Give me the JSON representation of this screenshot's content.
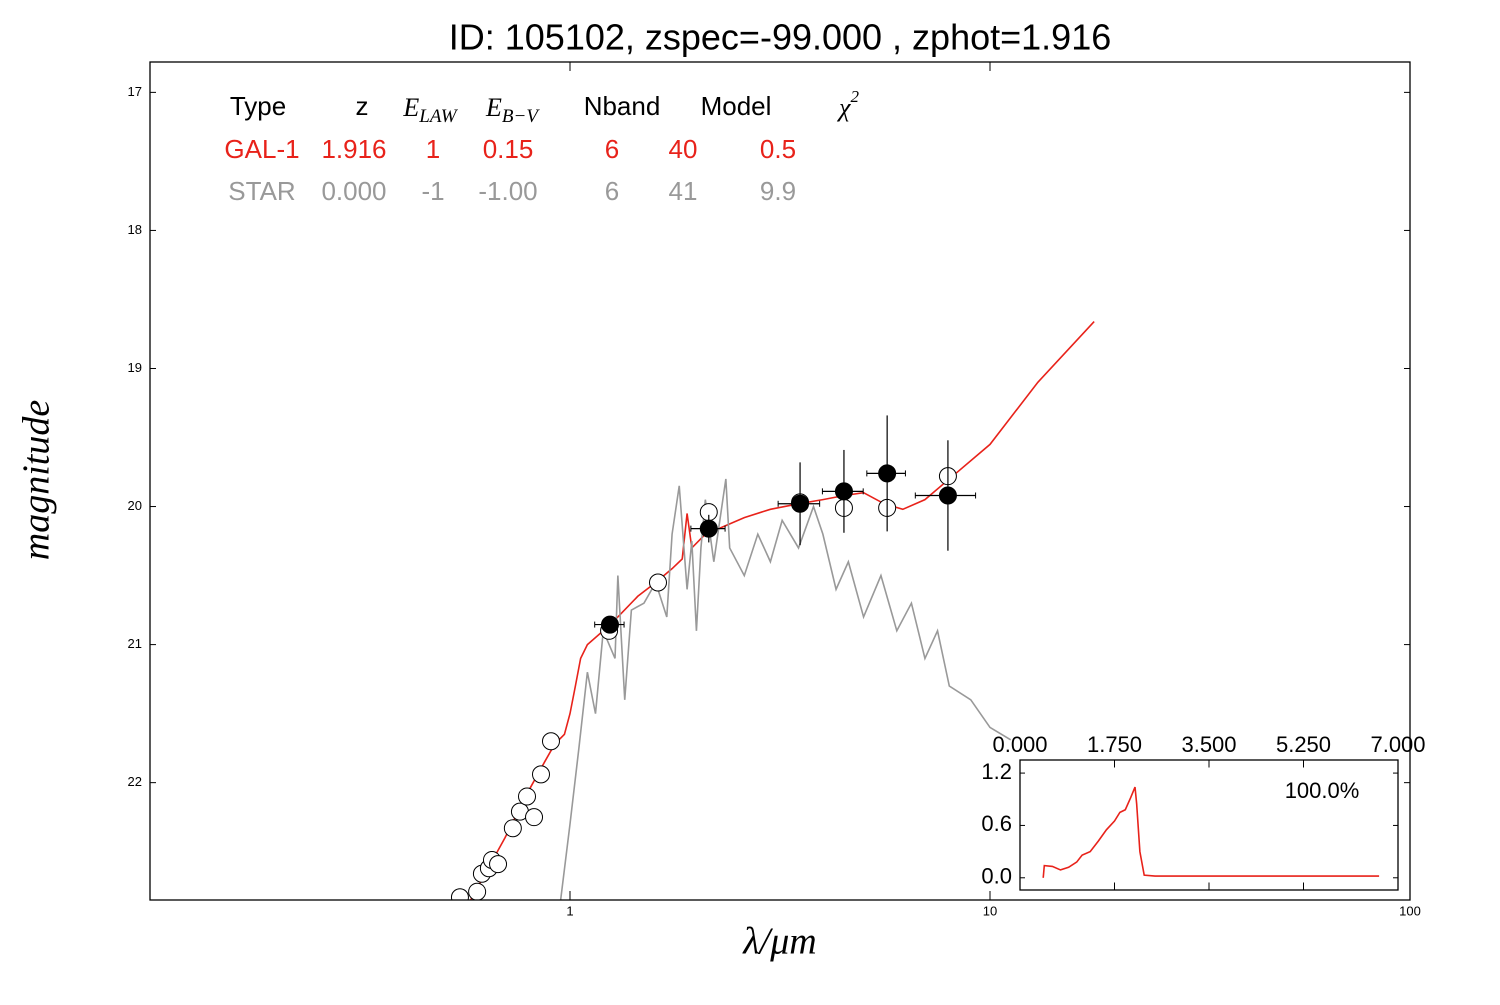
{
  "chart_data": [
    {
      "type": "line",
      "title": "ID:  105102, zspec=-99.000 , zphot=1.916",
      "xlabel": "λ/μm",
      "ylabel": "magnitude",
      "xlog": true,
      "xlim": [
        0.1,
        100
      ],
      "xticks": [
        1,
        10,
        100
      ],
      "ylim": [
        16.78,
        22.85
      ],
      "yinvert": true,
      "yticks": [
        17,
        18,
        19,
        20,
        21,
        22
      ],
      "series": [
        {
          "style": "line",
          "color": "#e8221a",
          "x": [
            0.58,
            0.7,
            0.8,
            0.87,
            0.92,
            0.97,
            1.0,
            1.03,
            1.06,
            1.1,
            1.2,
            1.3,
            1.45,
            1.6,
            1.75,
            1.85,
            1.9,
            1.95,
            2.1,
            2.3,
            2.6,
            3.0,
            3.5,
            4.0,
            4.5,
            5.0,
            5.6,
            6.2,
            7.0,
            8.0,
            10,
            13,
            17.7
          ],
          "values": [
            22.85,
            22.4,
            22.05,
            21.85,
            21.72,
            21.65,
            21.5,
            21.3,
            21.1,
            21.0,
            20.9,
            20.8,
            20.65,
            20.55,
            20.45,
            20.38,
            20.05,
            20.3,
            20.2,
            20.15,
            20.08,
            20.02,
            19.98,
            19.95,
            19.92,
            19.9,
            19.98,
            20.02,
            19.95,
            19.8,
            19.55,
            19.1,
            18.66
          ]
        },
        {
          "style": "line",
          "color": "#999999",
          "x": [
            0.95,
            1.0,
            1.05,
            1.1,
            1.15,
            1.2,
            1.28,
            1.3,
            1.35,
            1.4,
            1.5,
            1.6,
            1.7,
            1.75,
            1.82,
            1.9,
            1.95,
            2.0,
            2.05,
            2.1,
            2.2,
            2.35,
            2.4,
            2.6,
            2.8,
            3.0,
            3.2,
            3.5,
            3.8,
            4.0,
            4.3,
            4.6,
            5.0,
            5.5,
            6.0,
            6.5,
            7.0,
            7.5,
            8.0,
            9.0,
            10,
            11.2
          ],
          "values": [
            22.85,
            22.3,
            21.75,
            21.2,
            21.5,
            20.9,
            21.1,
            20.5,
            21.4,
            20.75,
            20.7,
            20.55,
            20.8,
            20.2,
            19.85,
            20.6,
            20.25,
            20.9,
            20.3,
            19.95,
            20.4,
            19.8,
            20.3,
            20.5,
            20.2,
            20.4,
            20.1,
            20.3,
            20.0,
            20.2,
            20.6,
            20.4,
            20.8,
            20.5,
            20.9,
            20.7,
            21.1,
            20.9,
            21.3,
            21.4,
            21.6,
            21.69
          ]
        },
        {
          "style": "marker",
          "color": "#000000",
          "fill": "#ffffff",
          "x": [
            0.547,
            0.601,
            0.617,
            0.641,
            0.652,
            0.674,
            0.731,
            0.76,
            0.79,
            0.821,
            0.853,
            0.901,
            1.239,
            1.62,
            2.14,
            3.53,
            4.49,
            5.69,
            7.94
          ],
          "values": [
            22.83,
            22.79,
            22.66,
            22.62,
            22.56,
            22.59,
            22.33,
            22.21,
            22.1,
            22.25,
            21.94,
            21.7,
            20.9,
            20.55,
            20.04,
            19.97,
            20.01,
            20.01,
            19.78
          ]
        },
        {
          "style": "marker",
          "color": "#000000",
          "fill": "#000000",
          "x": [
            1.245,
            2.14,
            3.53,
            4.49,
            5.69,
            7.94
          ],
          "values": [
            20.855,
            20.16,
            19.98,
            19.89,
            19.76,
            19.92
          ],
          "yerr": [
            0.03,
            0.1,
            0.3,
            0.3,
            0.42,
            0.4
          ],
          "xerr": [
            0.1,
            0.2,
            0.4,
            0.5,
            0.6,
            1.3
          ]
        }
      ],
      "table": {
        "header": [
          "Type",
          "z",
          {
            "main": "E",
            "sub": "LAW"
          },
          {
            "main": "E",
            "sub": "B−V"
          },
          "Nband",
          "Model",
          {
            "main": "χ",
            "sup": "2"
          }
        ],
        "header_color": "#000000",
        "rows": [
          [
            "GAL-1",
            "1.916",
            "1",
            "0.15",
            "6",
            "40",
            "0.5"
          ],
          [
            "STAR",
            "0.000",
            "-1",
            "-1.00",
            "6",
            "41",
            "9.9"
          ]
        ],
        "row_colors": [
          "#e8221a",
          "#999999"
        ]
      }
    },
    {
      "type": "line",
      "xlog": false,
      "xlim": [
        0,
        7
      ],
      "xticks": [
        {
          "value": 0,
          "label": "0.000"
        },
        {
          "value": 1.75,
          "label": "1.750"
        },
        {
          "value": 3.5,
          "label": "3.500"
        },
        {
          "value": 5.25,
          "label": "5.250"
        },
        {
          "value": 7,
          "label": "7.000"
        }
      ],
      "xtick_side": "top",
      "ylim": [
        -0.14,
        1.35
      ],
      "yticks": [
        {
          "value": 0,
          "label": "0.0"
        },
        0.6,
        1.2
      ],
      "annotation": "100.0%",
      "series": [
        {
          "style": "line",
          "color": "#e8221a",
          "x": [
            0.43,
            0.45,
            0.6,
            0.75,
            0.9,
            1.05,
            1.15,
            1.3,
            1.45,
            1.6,
            1.75,
            1.85,
            1.95,
            2.05,
            2.13,
            2.16,
            2.22,
            2.3,
            2.5,
            6.65
          ],
          "values": [
            0.0,
            0.14,
            0.13,
            0.09,
            0.12,
            0.18,
            0.26,
            0.3,
            0.42,
            0.55,
            0.65,
            0.75,
            0.78,
            0.92,
            1.04,
            0.85,
            0.3,
            0.03,
            0.02,
            0.02
          ]
        }
      ]
    }
  ]
}
